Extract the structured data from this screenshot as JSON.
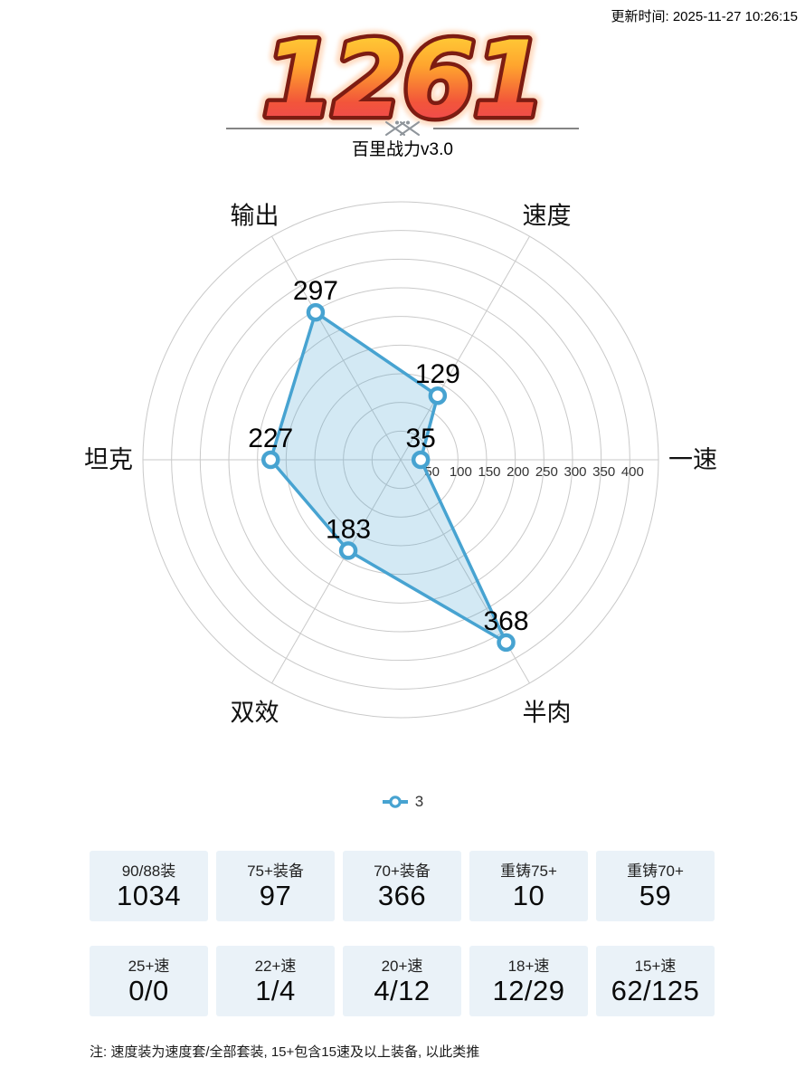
{
  "header": {
    "update_time": "更新时间: 2025-11-27 10:26:15",
    "score": "1261",
    "subtitle": "百里战力v3.0"
  },
  "colors": {
    "accent_blue": "#47a3d1",
    "fill_blue": "rgba(71,163,209,0.24)",
    "grid": "#c9c9c9",
    "tick_text": "#333333",
    "label_text": "#111111",
    "card_bg": "#eaf2f8",
    "score_gradient_top": "#ffe03a",
    "score_gradient_mid1": "#ffa52e",
    "score_gradient_mid2": "#f2553a",
    "score_gradient_bottom": "#ee3f62",
    "score_outline": "#7d1c12",
    "score_glow": "#ffd9bd",
    "divider_gray": "#848484"
  },
  "chart_data": {
    "type": "radar",
    "axes": [
      "一速",
      "速度",
      "输出",
      "坦克",
      "双效",
      "半肉"
    ],
    "angles_deg": [
      0,
      60,
      120,
      180,
      240,
      300
    ],
    "series": [
      {
        "name": "3",
        "values": [
          35,
          129,
          297,
          227,
          183,
          368
        ]
      }
    ],
    "rmax": 450,
    "ring_step": 50,
    "tick_labels": [
      50,
      100,
      150,
      200,
      250,
      300,
      350,
      400
    ],
    "grid": true,
    "grid_shape": "circle",
    "legend_position": "bottom"
  },
  "legend": {
    "label": "3"
  },
  "stats": {
    "rows": [
      [
        {
          "label": "90/88装",
          "value": "1034"
        },
        {
          "label": "75+装备",
          "value": "97"
        },
        {
          "label": "70+装备",
          "value": "366"
        },
        {
          "label": "重铸75+",
          "value": "10"
        },
        {
          "label": "重铸70+",
          "value": "59"
        }
      ],
      [
        {
          "label": "25+速",
          "value": "0/0"
        },
        {
          "label": "22+速",
          "value": "1/4"
        },
        {
          "label": "20+速",
          "value": "4/12"
        },
        {
          "label": "18+速",
          "value": "12/29"
        },
        {
          "label": "15+速",
          "value": "62/125"
        }
      ]
    ]
  },
  "footnote": "注: 速度装为速度套/全部套装, 15+包含15速及以上装备, 以此类推"
}
